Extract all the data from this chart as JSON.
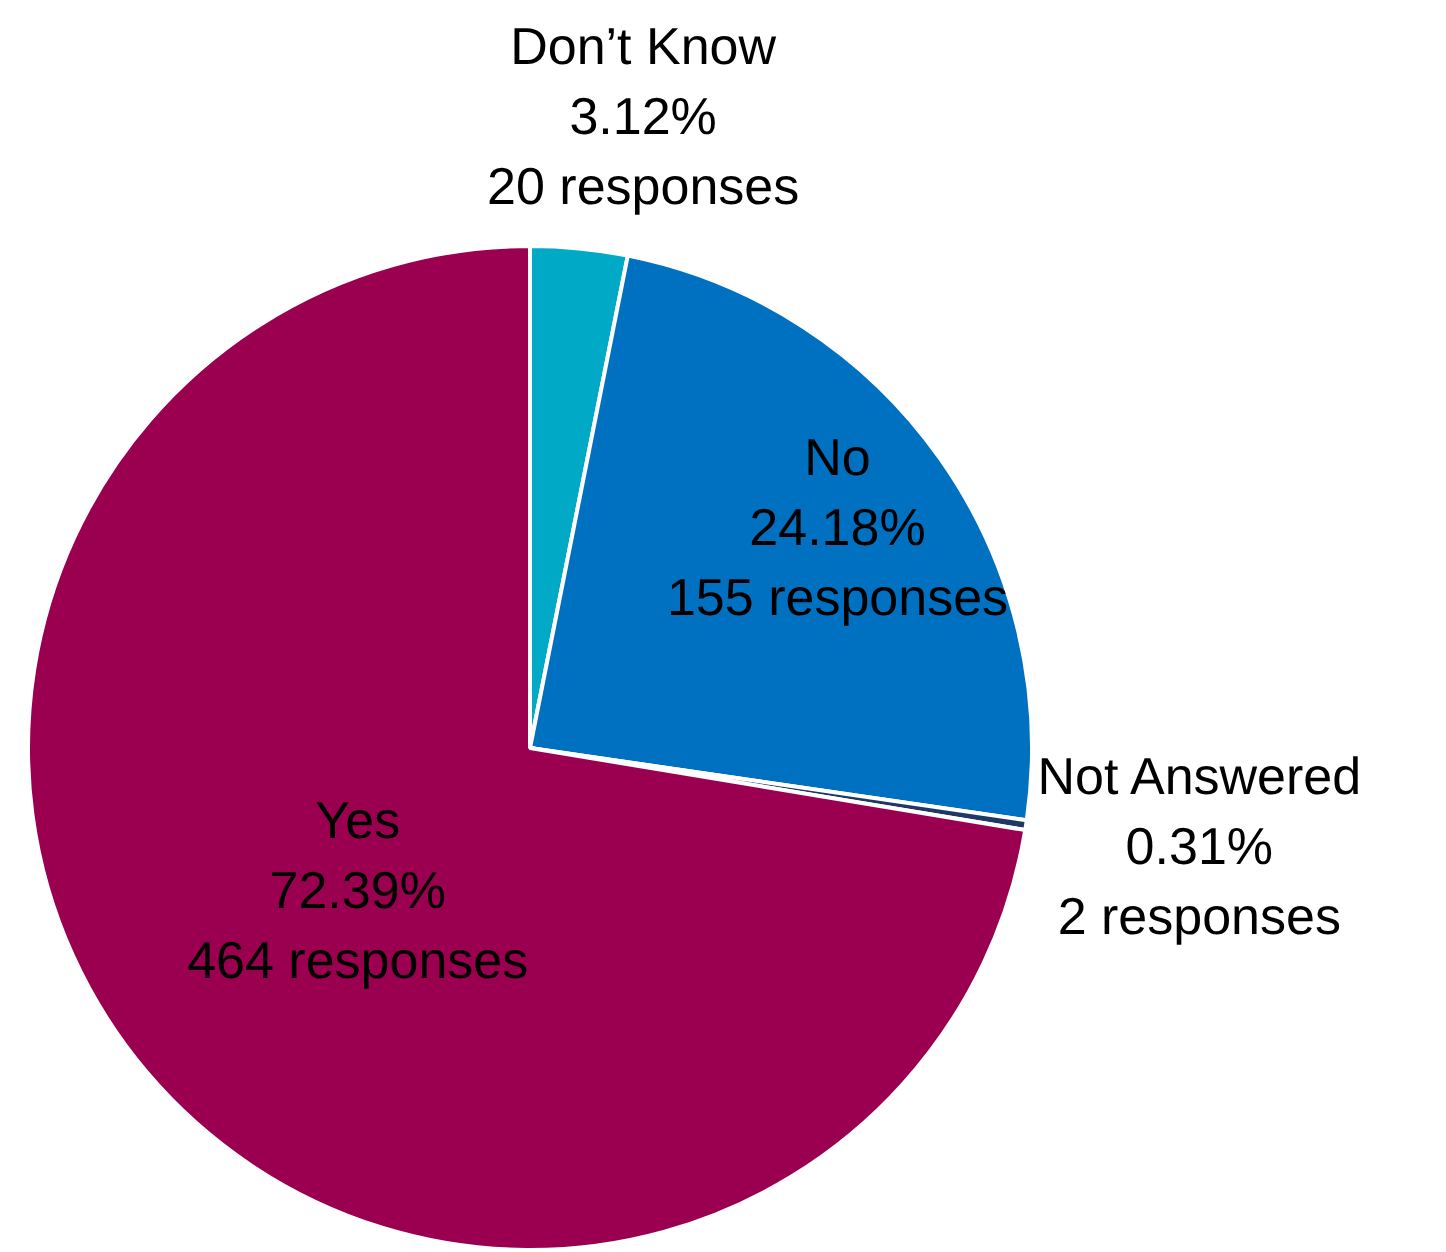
{
  "chart_data": {
    "type": "pie",
    "categories": [
      "Don’t Know",
      "No",
      "Not Answered",
      "Yes"
    ],
    "values": [
      20,
      155,
      2,
      464
    ],
    "value_labels": [
      "3.12%\n20 responses",
      "24.18%\n155 responses",
      "0.31%\n2 responses",
      "72.39%\n464 responses"
    ],
    "colors": [
      "#00a9c6",
      "#0070c0",
      "#1f3864",
      "#9b0050"
    ],
    "legend": false
  }
}
